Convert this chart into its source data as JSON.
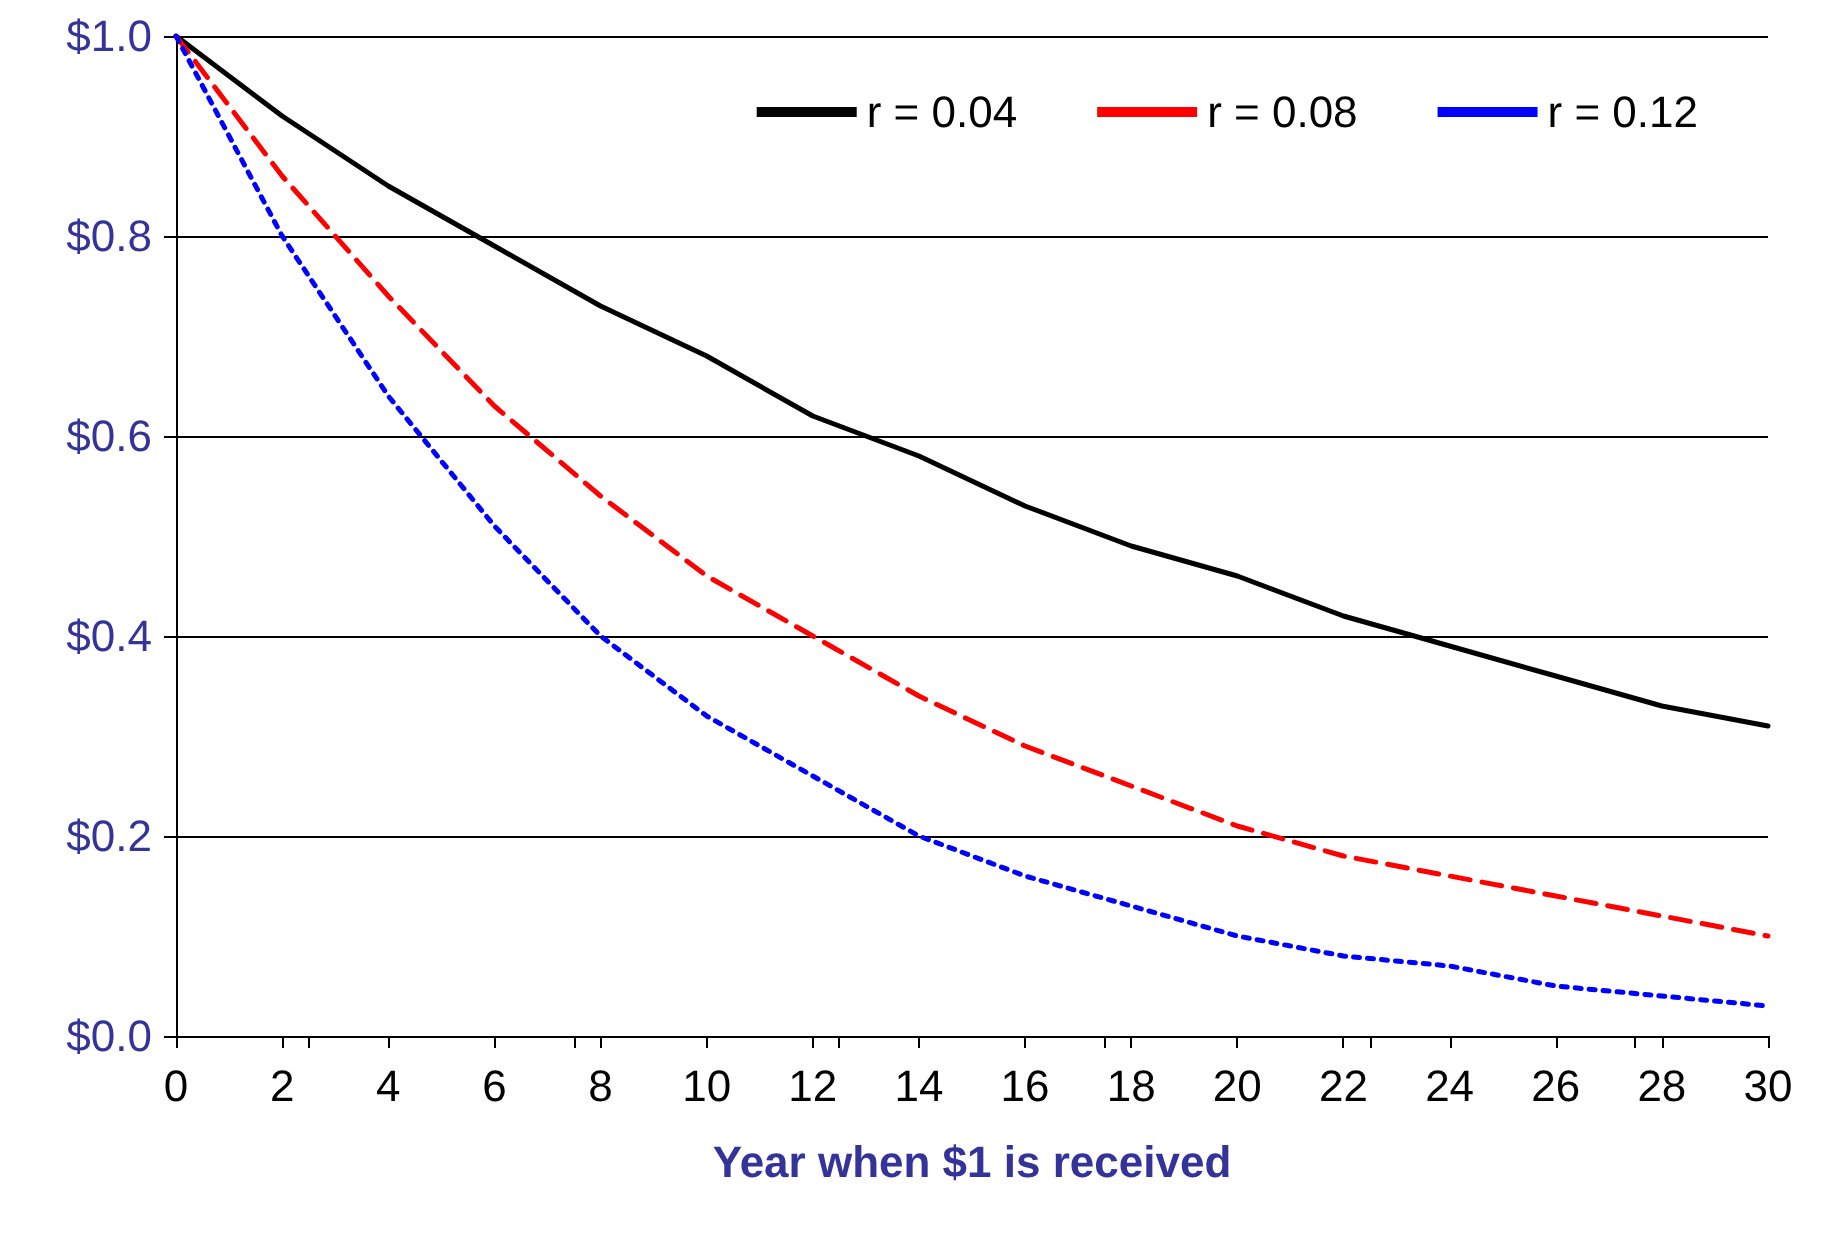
{
  "chart_data": {
    "type": "line",
    "xlabel": "Year when $1 is received",
    "x": [
      0,
      2,
      4,
      6,
      8,
      10,
      12,
      14,
      16,
      18,
      20,
      22,
      24,
      26,
      28,
      30
    ],
    "series": [
      {
        "name": "r = 0.04",
        "color": "#000000",
        "line_style": "solid",
        "values": [
          1.0,
          0.92,
          0.85,
          0.79,
          0.73,
          0.68,
          0.62,
          0.58,
          0.53,
          0.49,
          0.46,
          0.42,
          0.39,
          0.36,
          0.33,
          0.31
        ]
      },
      {
        "name": "r = 0.08",
        "color": "#ff0000",
        "line_style": "dashed",
        "values": [
          1.0,
          0.86,
          0.74,
          0.63,
          0.54,
          0.46,
          0.4,
          0.34,
          0.29,
          0.25,
          0.21,
          0.18,
          0.16,
          0.14,
          0.12,
          0.1
        ]
      },
      {
        "name": "r = 0.12",
        "color": "#0000ff",
        "line_style": "dotted",
        "values": [
          1.0,
          0.8,
          0.64,
          0.51,
          0.4,
          0.32,
          0.26,
          0.2,
          0.16,
          0.13,
          0.1,
          0.08,
          0.07,
          0.05,
          0.04,
          0.03
        ]
      }
    ],
    "xlim": [
      0,
      30
    ],
    "xticks": [
      0,
      2,
      4,
      6,
      8,
      10,
      12,
      14,
      16,
      18,
      20,
      22,
      24,
      26,
      28,
      30
    ],
    "ylim": [
      0,
      1
    ],
    "yticks": [
      {
        "value": 0,
        "label": "$0.0"
      },
      {
        "value": 0.2,
        "label": "$0.2"
      },
      {
        "value": 0.4,
        "label": "$0.4"
      },
      {
        "value": 0.6,
        "label": "$0.6"
      },
      {
        "value": 0.8,
        "label": "$0.8"
      },
      {
        "value": 1,
        "label": "$1.0"
      }
    ],
    "grid": "y",
    "legend": "top right",
    "marker": "none"
  }
}
